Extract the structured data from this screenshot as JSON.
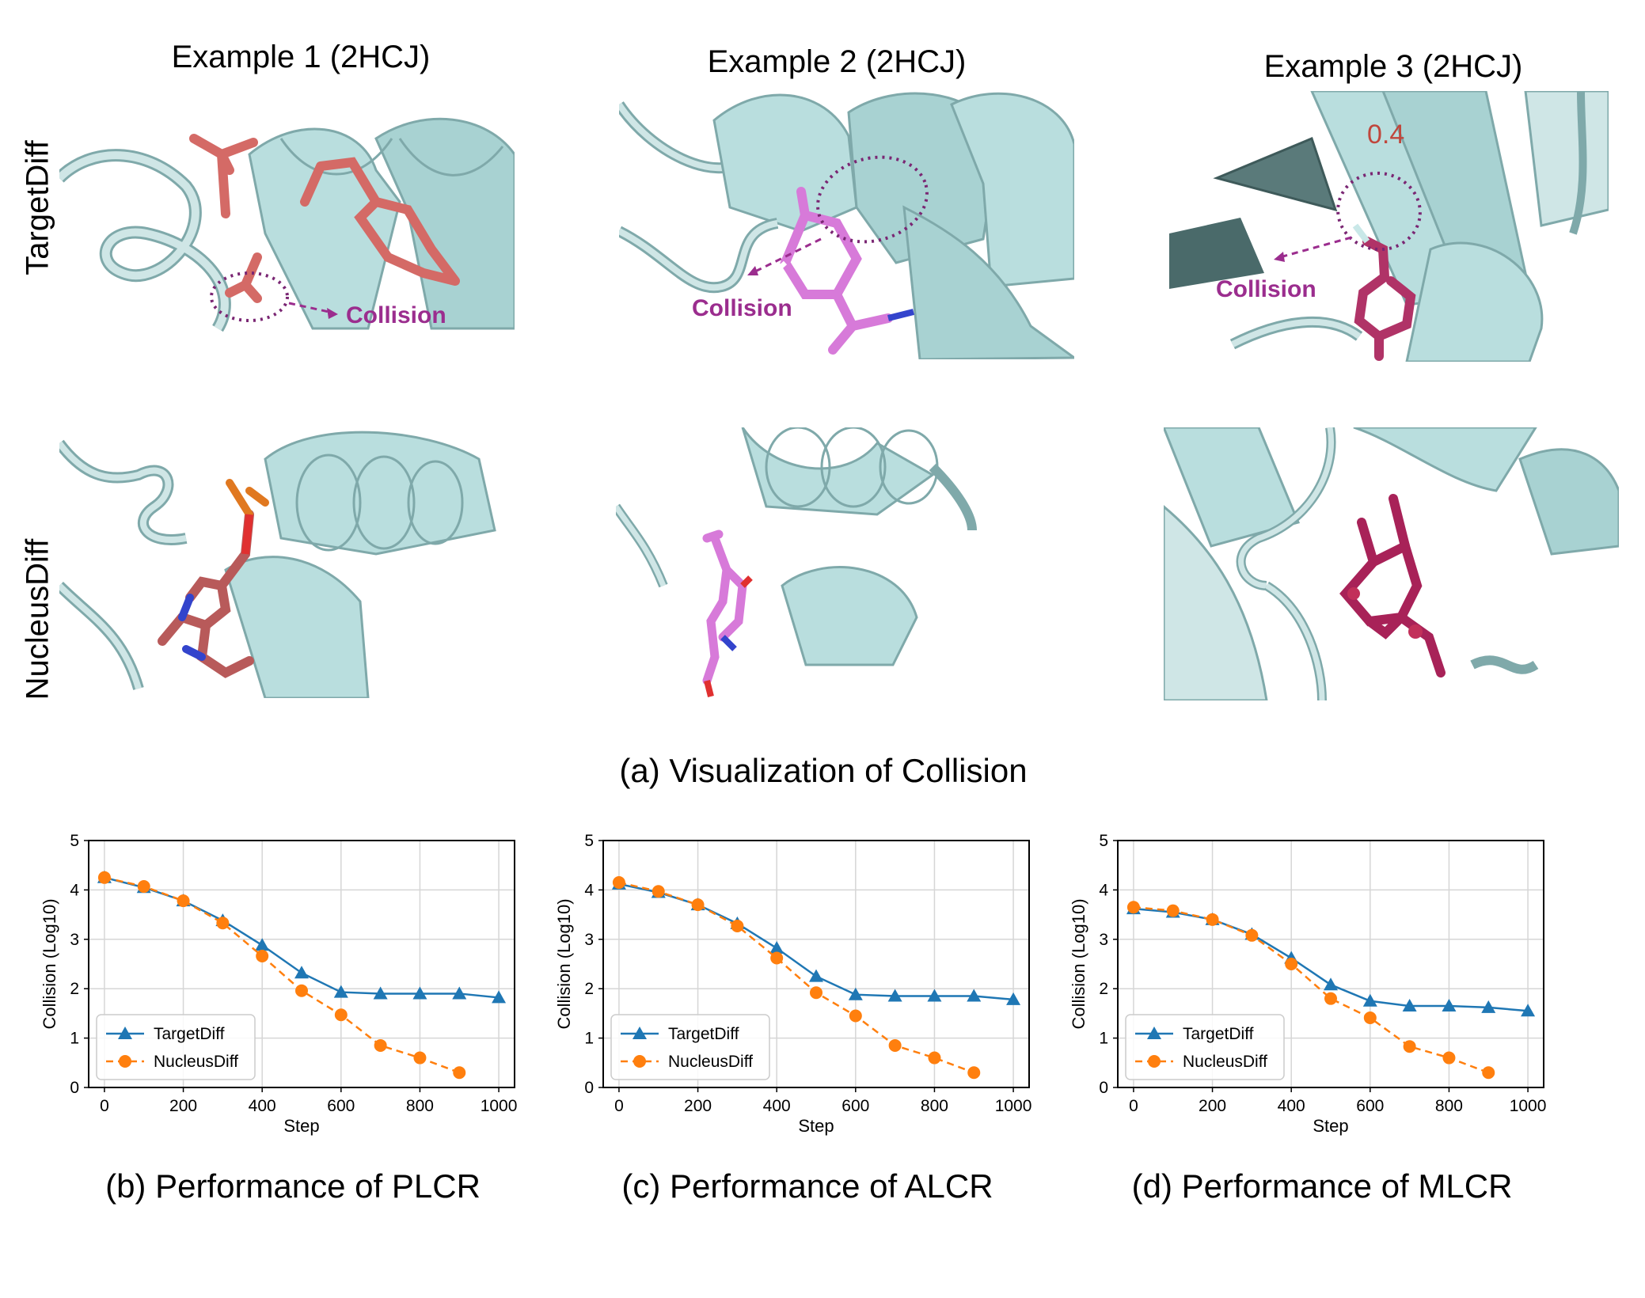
{
  "figure": {
    "columns": [
      "Example 1 (2HCJ)",
      "Example 2 (2HCJ)",
      "Example 3 (2HCJ)"
    ],
    "rows": [
      "TargetDiff",
      "NucleusDiff"
    ],
    "collision_label": "Collision",
    "distance_label": "0.4",
    "caption_a": "(a) Visualization of Collision",
    "captions": [
      "(b) Performance of PLCR",
      "(c) Performance of ALCR",
      "(d) Performance of MLCR"
    ],
    "colors": {
      "protein": "#b9dede",
      "protein_edge": "#7fa9aa",
      "ligand1": "#d46a66",
      "ligand2": "#d77ad9",
      "ligand3": "#b03367",
      "ligand_nd1": "#b85a5a",
      "ligand_nd3": "#a82258"
    }
  },
  "chart_data": [
    {
      "type": "line",
      "xlabel": "Step",
      "ylabel": "Collision (Log10)",
      "xlim": [
        -40,
        1040
      ],
      "ylim": [
        0,
        5
      ],
      "xticks": [
        "0",
        "200",
        "400",
        "600",
        "800",
        "1000"
      ],
      "yticks": [
        "0",
        "1",
        "2",
        "3",
        "4",
        "5"
      ],
      "grid": true,
      "legend": "lower-left",
      "series": [
        {
          "name": "TargetDiff",
          "color": "#1f77b4",
          "marker": "triangle",
          "x": [
            0,
            100,
            200,
            300,
            400,
            500,
            600,
            700,
            800,
            900,
            1000
          ],
          "y": [
            4.25,
            4.05,
            3.78,
            3.38,
            2.88,
            2.32,
            1.93,
            1.9,
            1.9,
            1.9,
            1.82
          ]
        },
        {
          "name": "NucleusDiff",
          "color": "#ff7f0e",
          "marker": "circle",
          "dashed": true,
          "x": [
            0,
            100,
            200,
            300,
            400,
            500,
            600,
            700,
            800,
            900
          ],
          "y": [
            4.25,
            4.07,
            3.78,
            3.33,
            2.66,
            1.96,
            1.47,
            0.85,
            0.6,
            0.3
          ]
        }
      ]
    },
    {
      "type": "line",
      "xlabel": "Step",
      "ylabel": "Collision (Log10)",
      "xlim": [
        -40,
        1040
      ],
      "ylim": [
        0,
        5
      ],
      "xticks": [
        "0",
        "200",
        "400",
        "600",
        "800",
        "1000"
      ],
      "yticks": [
        "0",
        "1",
        "2",
        "3",
        "4",
        "5"
      ],
      "grid": true,
      "legend": "lower-left",
      "series": [
        {
          "name": "TargetDiff",
          "color": "#1f77b4",
          "marker": "triangle",
          "x": [
            0,
            100,
            200,
            300,
            400,
            500,
            600,
            700,
            800,
            900,
            1000
          ],
          "y": [
            4.12,
            3.95,
            3.7,
            3.32,
            2.82,
            2.25,
            1.88,
            1.85,
            1.85,
            1.85,
            1.78
          ]
        },
        {
          "name": "NucleusDiff",
          "color": "#ff7f0e",
          "marker": "circle",
          "dashed": true,
          "x": [
            0,
            100,
            200,
            300,
            400,
            500,
            600,
            700,
            800,
            900
          ],
          "y": [
            4.15,
            3.97,
            3.7,
            3.27,
            2.62,
            1.92,
            1.45,
            0.85,
            0.6,
            0.3
          ]
        }
      ]
    },
    {
      "type": "line",
      "xlabel": "Step",
      "ylabel": "Collision (Log10)",
      "xlim": [
        -40,
        1040
      ],
      "ylim": [
        0,
        5
      ],
      "xticks": [
        "0",
        "200",
        "400",
        "600",
        "800",
        "1000"
      ],
      "yticks": [
        "0",
        "1",
        "2",
        "3",
        "4",
        "5"
      ],
      "grid": true,
      "legend": "lower-left",
      "series": [
        {
          "name": "TargetDiff",
          "color": "#1f77b4",
          "marker": "triangle",
          "x": [
            0,
            100,
            200,
            300,
            400,
            500,
            600,
            700,
            800,
            900,
            1000
          ],
          "y": [
            3.62,
            3.55,
            3.4,
            3.1,
            2.62,
            2.08,
            1.75,
            1.65,
            1.65,
            1.62,
            1.55
          ]
        },
        {
          "name": "NucleusDiff",
          "color": "#ff7f0e",
          "marker": "circle",
          "dashed": true,
          "x": [
            0,
            100,
            200,
            300,
            400,
            500,
            600,
            700,
            800,
            900
          ],
          "y": [
            3.65,
            3.58,
            3.4,
            3.08,
            2.5,
            1.8,
            1.41,
            0.83,
            0.6,
            0.3
          ]
        }
      ]
    }
  ]
}
